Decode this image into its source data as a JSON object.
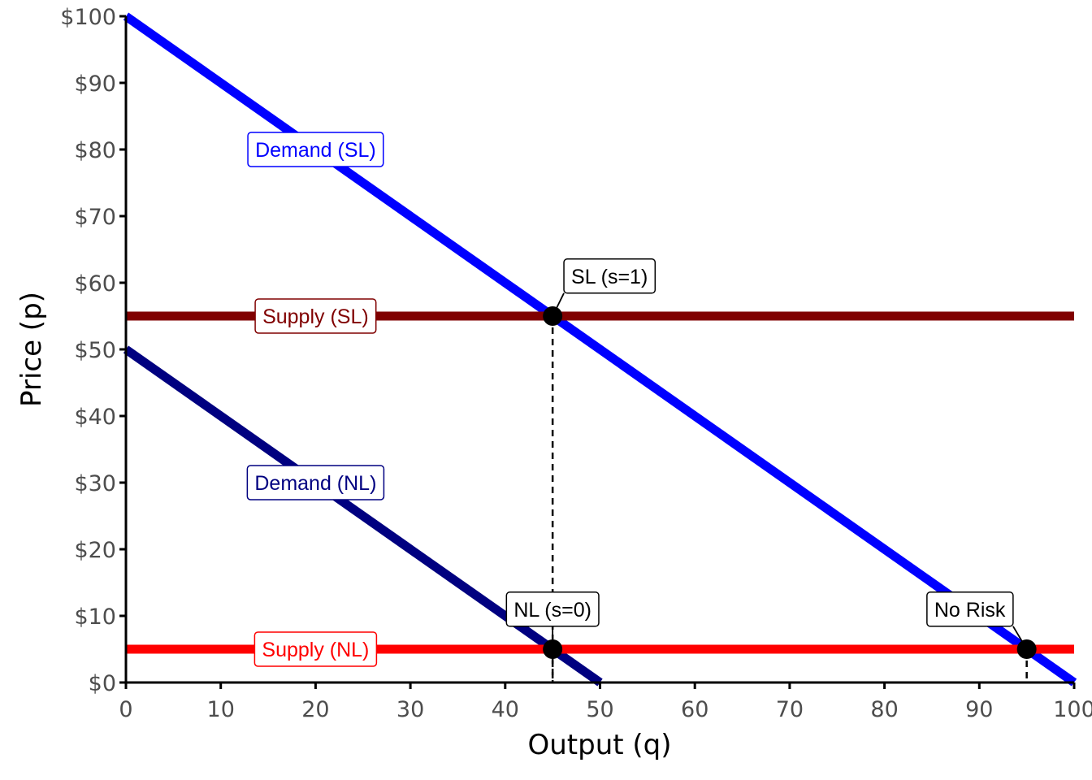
{
  "chart_data": {
    "type": "line",
    "title": "",
    "xlabel": "Output (q)",
    "ylabel": "Price (p)",
    "xlim": [
      0,
      100
    ],
    "ylim": [
      0,
      100
    ],
    "x_ticks": [
      0,
      10,
      20,
      30,
      40,
      50,
      60,
      70,
      80,
      90,
      100
    ],
    "y_ticks": [
      0,
      10,
      20,
      30,
      40,
      50,
      60,
      70,
      80,
      90,
      100
    ],
    "y_tick_format": "$",
    "grid": false,
    "series": [
      {
        "name": "Demand (SL)",
        "color": "#0000ff",
        "x": [
          0,
          100
        ],
        "y": [
          100,
          0
        ],
        "label_at": [
          20,
          80
        ]
      },
      {
        "name": "Demand (NL)",
        "color": "#000080",
        "x": [
          0,
          50
        ],
        "y": [
          50,
          0
        ],
        "label_at": [
          20,
          30
        ]
      },
      {
        "name": "Supply (SL)",
        "color": "#800000",
        "x": [
          0,
          100
        ],
        "y": [
          55,
          55
        ],
        "label_at": [
          20,
          55
        ]
      },
      {
        "name": "Supply (NL)",
        "color": "#ff0000",
        "x": [
          0,
          100
        ],
        "y": [
          5,
          5
        ],
        "label_at": [
          20,
          5
        ]
      }
    ],
    "points": [
      {
        "label": "SL (s=1)",
        "x": 45,
        "y": 55,
        "label_at": [
          51,
          61
        ],
        "dropline": true
      },
      {
        "label": "NL (s=0)",
        "x": 45,
        "y": 5,
        "label_at": [
          45,
          11
        ],
        "dropline": true
      },
      {
        "label": "No Risk",
        "x": 95,
        "y": 5,
        "label_at": [
          89,
          11
        ],
        "dropline": true
      }
    ]
  }
}
